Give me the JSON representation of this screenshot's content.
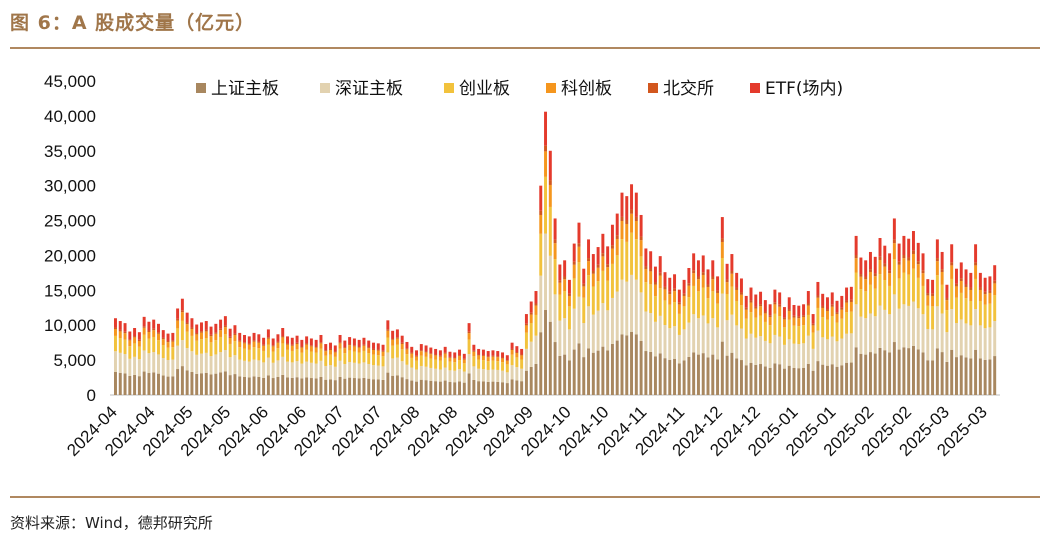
{
  "header": {
    "title": "图 6：A 股成交量（亿元）"
  },
  "footer": {
    "source": "资料来源：Wind，德邦研究所"
  },
  "colors": {
    "sh_main": "#a8875f",
    "sz_main": "#e2d2b0",
    "chinext": "#f2c23c",
    "star": "#f5961e",
    "bse": "#d2571e",
    "etf": "#e43a2c",
    "rule": "#b08860"
  },
  "chart_data": {
    "type": "bar",
    "stacked": true,
    "title": "A 股成交量（亿元）",
    "ylabel": "",
    "ylim": [
      0,
      45000
    ],
    "yticks": [
      "0",
      "5,000",
      "10,000",
      "15,000",
      "20,000",
      "25,000",
      "30,000",
      "35,000",
      "40,000",
      "45,000"
    ],
    "xtick_labels": [
      "2024-04",
      "2024-04",
      "2024-05",
      "2024-05",
      "2024-06",
      "2024-06",
      "2024-07",
      "2024-07",
      "2024-08",
      "2024-08",
      "2024-09",
      "2024-09",
      "2024-10",
      "2024-10",
      "2024-11",
      "2024-11",
      "2024-12",
      "2024-12",
      "2025-01",
      "2025-01",
      "2025-02",
      "2025-02",
      "2025-03",
      "2025-03"
    ],
    "legend": [
      "上证主板",
      "深证主板",
      "创业板",
      "科创板",
      "北交所",
      "ETF(场内)"
    ],
    "legend_position": "top",
    "series_colors": [
      "#a8875f",
      "#e2d2b0",
      "#f2c23c",
      "#f5961e",
      "#d2571e",
      "#e43a2c"
    ],
    "share": {
      "上证主板": 0.3,
      "深证主板": 0.27,
      "创业板": 0.2,
      "科创板": 0.09,
      "北交所": 0.02,
      "ETF(场内)": 0.12
    },
    "totals": [
      11000,
      10600,
      10300,
      9100,
      9600,
      9000,
      11200,
      10500,
      10800,
      10200,
      9300,
      8800,
      8900,
      12400,
      13800,
      11800,
      11000,
      10100,
      10400,
      10600,
      9800,
      10200,
      10800,
      11300,
      9500,
      10000,
      8900,
      8600,
      8400,
      8900,
      8700,
      8200,
      9400,
      8100,
      8700,
      9600,
      8400,
      8200,
      8500,
      7900,
      8400,
      8100,
      7900,
      8600,
      7300,
      7500,
      7100,
      8600,
      7800,
      8300,
      8100,
      7900,
      8200,
      7800,
      7500,
      7400,
      7200,
      10700,
      9200,
      9400,
      8500,
      7600,
      6900,
      6400,
      7300,
      7100,
      6800,
      6600,
      6400,
      6900,
      6200,
      6100,
      6500,
      5900,
      10300,
      7200,
      6600,
      6500,
      6300,
      6400,
      6300,
      6100,
      5700,
      7500,
      7000,
      6600,
      11600,
      13400,
      14900,
      30000,
      40600,
      35000,
      25300,
      18700,
      19300,
      16500,
      21700,
      24700,
      18100,
      22300,
      20200,
      21200,
      23100,
      21300,
      24400,
      26000,
      29000,
      28500,
      30200,
      29000,
      25800,
      21000,
      20600,
      18400,
      19900,
      17600,
      16800,
      17300,
      15100,
      16500,
      18200,
      20300,
      19300,
      20000,
      18000,
      19300,
      17000,
      25500,
      18800,
      20200,
      17500,
      16700,
      14200,
      15400,
      14400,
      14800,
      13600,
      13000,
      15100,
      14700,
      12600,
      14000,
      12900,
      12800,
      13000,
      14900,
      11600,
      16200,
      14500,
      14000,
      14700,
      13500,
      14200,
      15400,
      15500,
      22800,
      19700,
      19300,
      20500,
      19800,
      22500,
      21400,
      20300,
      25300,
      21700,
      22800,
      22400,
      23500,
      21800,
      20300,
      16600,
      16500,
      22300,
      20500,
      15800,
      21600,
      18100,
      19000,
      18000,
      17500,
      21600,
      17500,
      16800,
      17000,
      18600
    ]
  }
}
